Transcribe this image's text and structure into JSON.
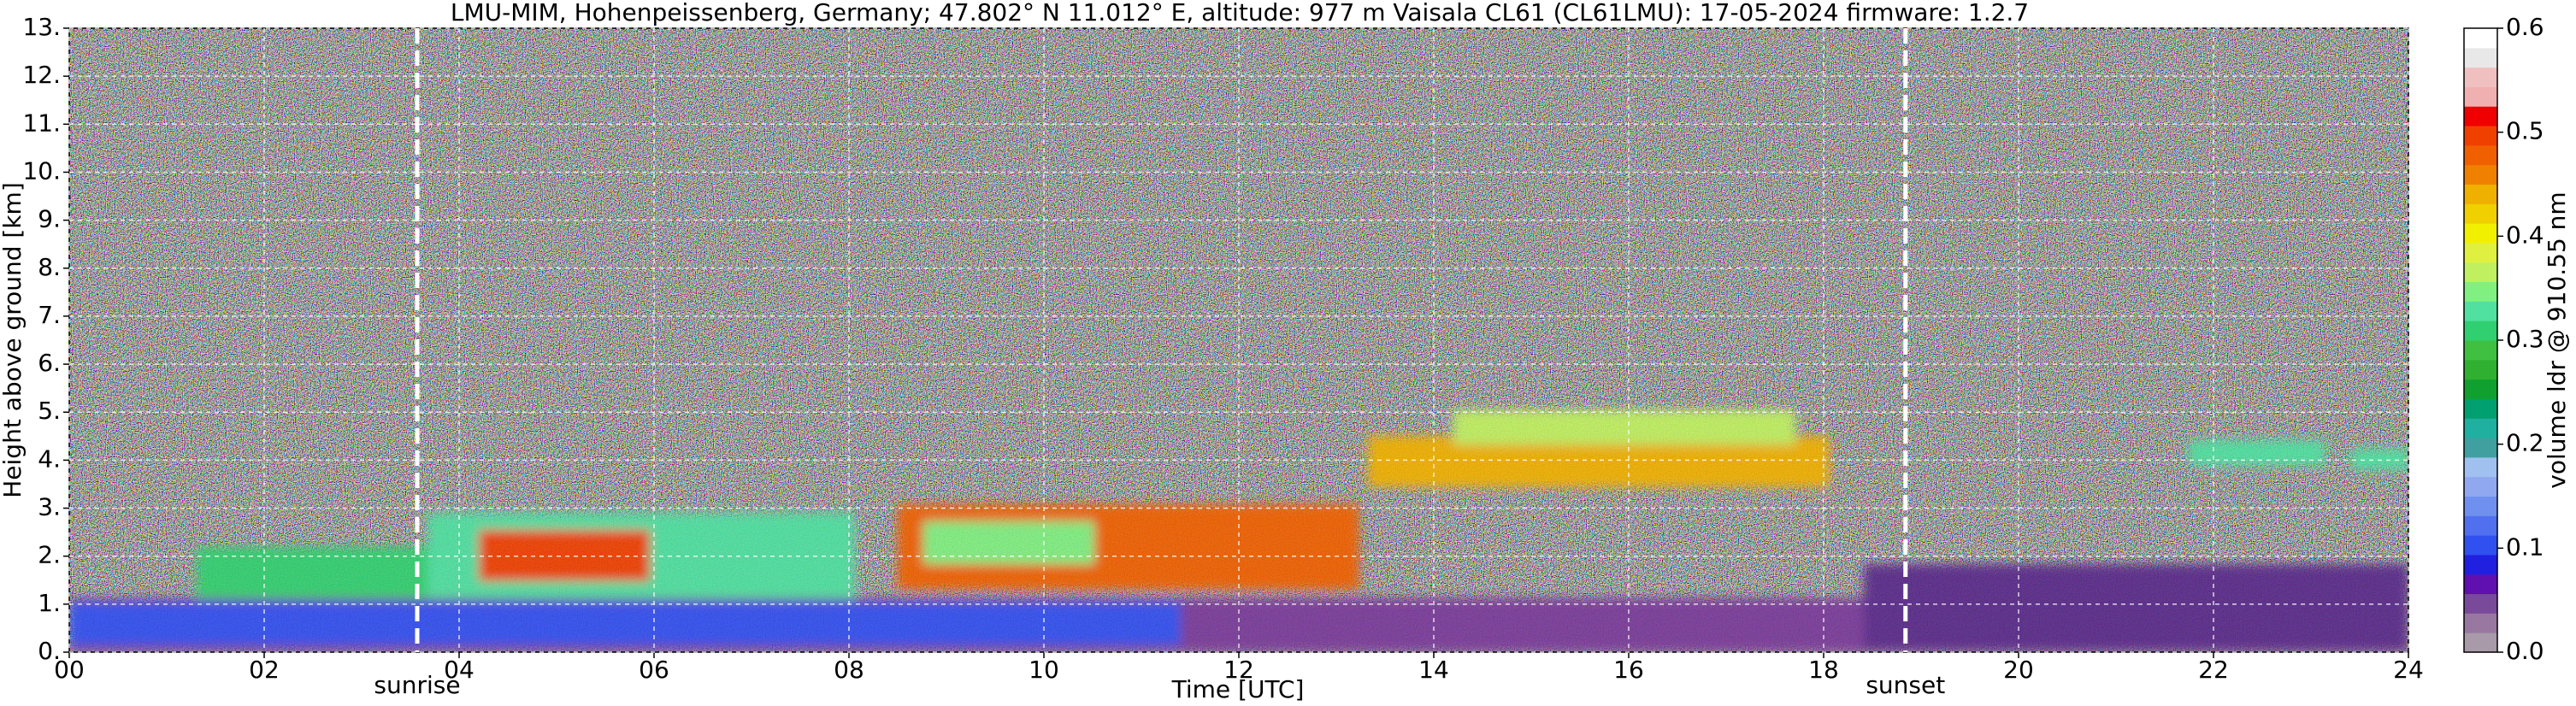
{
  "chart_data": {
    "type": "heatmap",
    "title": "LMU-MIM, Hohenpeissenberg, Germany; 47.802° N 11.012° E, altitude: 977 m    Vaisala CL61 (CL61LMU): 17-05-2024    firmware: 1.2.7",
    "xlabel": "Time [UTC]",
    "ylabel": "Height above ground [km]",
    "xlim": [
      0,
      24
    ],
    "xticks": [
      {
        "value": 0,
        "label": "00"
      },
      {
        "value": 2,
        "label": "02"
      },
      {
        "value": 4,
        "label": "04"
      },
      {
        "value": 6,
        "label": "06"
      },
      {
        "value": 8,
        "label": "08"
      },
      10,
      12,
      14,
      16,
      18,
      20,
      22,
      24
    ],
    "ylim": [
      0,
      13
    ],
    "yticks": [
      {
        "value": 0,
        "label": "0."
      },
      {
        "value": 1,
        "label": "1."
      },
      {
        "value": 2,
        "label": "2."
      },
      {
        "value": 3,
        "label": "3."
      },
      {
        "value": 4,
        "label": "4."
      },
      {
        "value": 5,
        "label": "5."
      },
      {
        "value": 6,
        "label": "6."
      },
      {
        "value": 7,
        "label": "7."
      },
      {
        "value": 8,
        "label": "8."
      },
      {
        "value": 9,
        "label": "9."
      },
      {
        "value": 10,
        "label": "10."
      },
      {
        "value": 11,
        "label": "11."
      },
      {
        "value": 12,
        "label": "12."
      },
      {
        "value": 13,
        "label": "13."
      }
    ],
    "grid": true,
    "annotations": [
      {
        "text": "sunrise",
        "x": 3.57
      },
      {
        "text": "sunset",
        "x": 18.84
      }
    ],
    "colorbar": {
      "label": "volume ldr @ 910.55 nm",
      "lim": [
        0,
        0.6
      ],
      "ticks": [
        {
          "value": 0,
          "label": "0.0"
        },
        0.1,
        0.2,
        0.3,
        0.4,
        0.5,
        0.6
      ],
      "colors": [
        "#a89aa8",
        "#9878a0",
        "#7a4a9a",
        "#6010b0",
        "#2020e0",
        "#3050f0",
        "#5070f0",
        "#7090f0",
        "#90a8f0",
        "#a0c0f0",
        "#40a0a0",
        "#20b0a0",
        "#00a070",
        "#10a030",
        "#30b030",
        "#40c040",
        "#30d070",
        "#50e0a0",
        "#80f080",
        "#c0f060",
        "#e0f040",
        "#f0f000",
        "#f0d000",
        "#f0b000",
        "#f08000",
        "#f06000",
        "#f04000",
        "#f00000",
        "#f0b0b0",
        "#f0c0c0",
        "#e8e8e8",
        "#ffffff"
      ]
    }
  }
}
